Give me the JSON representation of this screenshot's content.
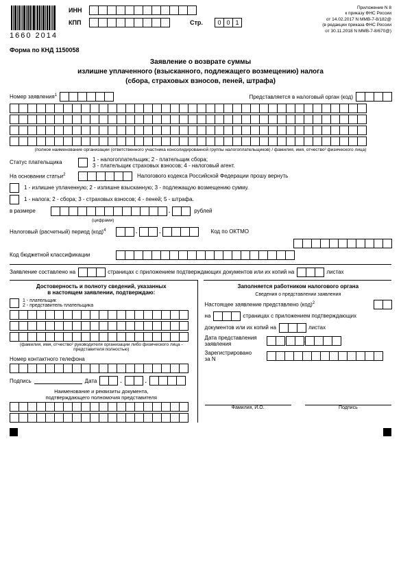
{
  "barcode_text": "1660 2014",
  "header": {
    "inn_label": "ИНН",
    "kpp_label": "КПП",
    "page_label": "Стр.",
    "page_value": [
      "0",
      "0",
      "1"
    ]
  },
  "attachment": {
    "l1": "Приложение N 8",
    "l2": "к приказу ФНС России",
    "l3": "от 14.02.2017 N ММВ-7-8/182@",
    "l4": "(в редакции приказа ФНС России",
    "l5": "от 30.11.2018 N ММВ-7-8/670@)"
  },
  "form_code": "Форма по КНД 1150058",
  "title": {
    "l1": "Заявление о возврате суммы",
    "l2": "излишне уплаченного (взысканного, подлежащего возмещению) налога",
    "l3": "(сбора, страховых взносов, пеней, штрафа)"
  },
  "app_number_label": "Номер заявления",
  "submit_to_label": "Представляется в налоговый орган (код)",
  "fullname_note": "(полное наименование организации (ответственного участника консолидированной группы налогоплательщиков) / фамилия, имя, отчество² физического лица)",
  "payer_status_label": "Статус плательщика",
  "payer_status_legend": "1 - налогоплательщик; 2 - плательщик сбора;\n3 - плательщик страховых взносов; 4 - налоговый агент.",
  "basis_label": "На основании статьи",
  "basis_suffix": "Налогового кодекса Российской Федерации прошу вернуть",
  "line_excess": "1 - излишне уплаченную; 2 - излишне взысканную; 3 - подлежащую возмещению сумму.",
  "line_tax": "1 - налога; 2 - сбора; 3 - страховых взносов; 4 - пеней; 5 - штрафа.",
  "amount_label": "в размере",
  "amount_note": "(цифрами)",
  "rubles": "рублей",
  "period_label": "Налоговый (расчетный) период (код)",
  "oktmo_label": "Код по ОКТМО",
  "kbk_label": "Код бюджетной классификации",
  "compiled_label": "Заявление составлено на",
  "compiled_mid": "страницах с приложением подтверждающих документов или их копий на",
  "compiled_end": "листах",
  "left": {
    "title": "Достоверность и полноту сведений, указанных\nв настоящем заявлении, подтверждаю:",
    "legend": "1 - плательщик\n2 - представитель плательщика",
    "fio_note": "(фамилия, имя, отчество² руководителя организации либо физического лица -\nпредставителя полностью)",
    "phone_label": "Номер контактного телефона",
    "sign_label": "Подпись",
    "date_label": "Дата",
    "doc_title": "Наименование и реквизиты документа,\nподтверждающего полномочия представителя"
  },
  "right": {
    "title": "Заполняется работником налогового органа",
    "sub": "Сведения о представлении заявления",
    "presented": "Настоящее заявление представлено (код)",
    "on": "на",
    "pages_with": "страницах с приложением подтверждающих",
    "docs_on": "документов или их копий на",
    "sheets": "листах",
    "submit_date": "Дата представления\nзаявления",
    "registered": "Зарегистрировано\nза N",
    "fio": "Фамилия, И.О.",
    "sign": "Подпись"
  },
  "cell_counts": {
    "inn": 12,
    "kpp": 9,
    "app_number": 6,
    "org_code": 4,
    "fullrow": 40,
    "fullrows": 4,
    "basis": 6,
    "amount_int": 13,
    "amount_dec": 2,
    "period1": 2,
    "period2": 2,
    "period3": 4,
    "oktmo": 11,
    "kbk": 20,
    "compiled": 3,
    "phone": 20
  }
}
